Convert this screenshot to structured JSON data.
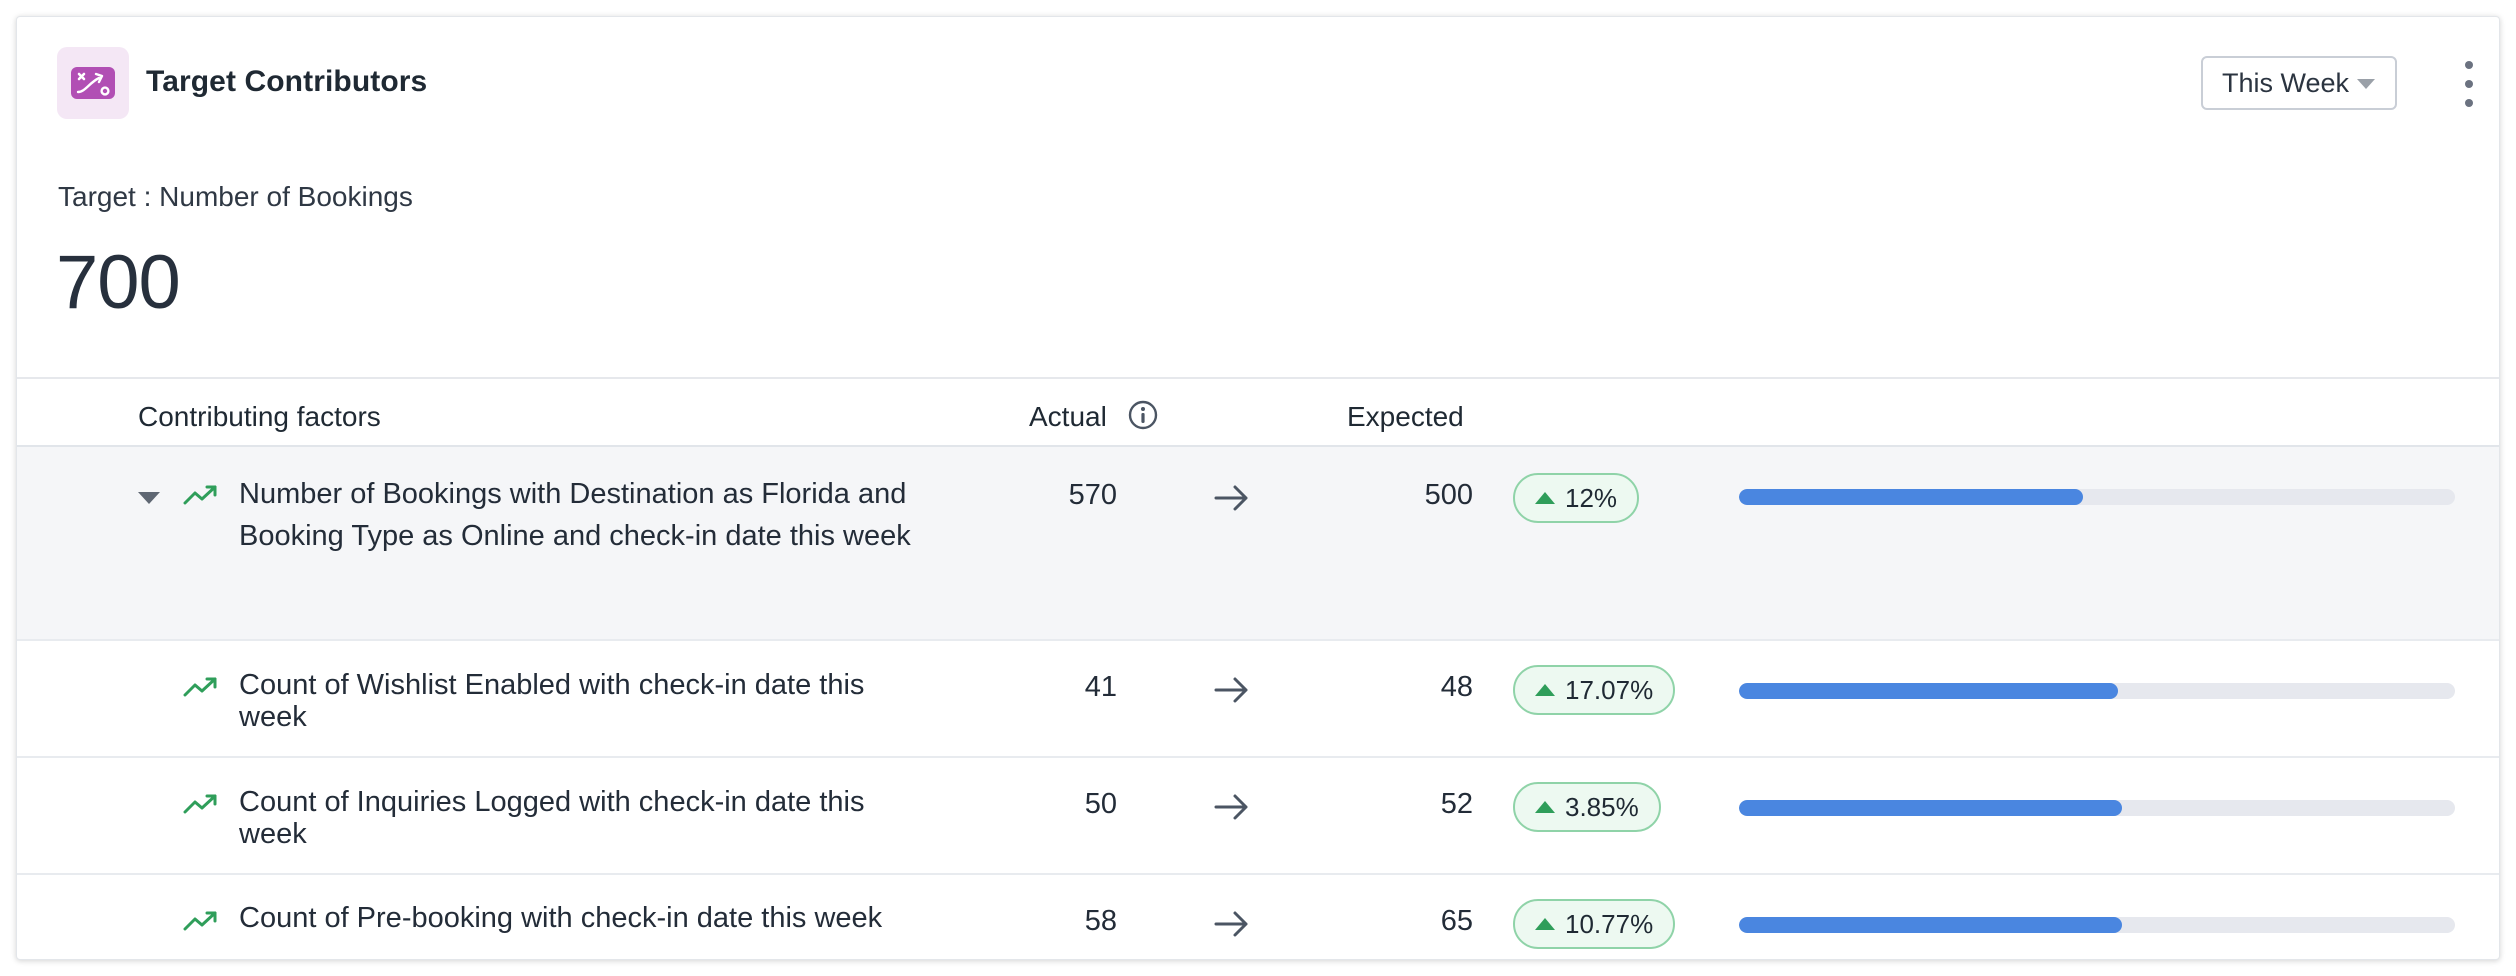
{
  "header": {
    "title": "Target Contributors",
    "icon": "target-strategy-icon",
    "period_select": {
      "value": "This Week"
    },
    "menu_icon": "more-vertical-icon"
  },
  "target": {
    "label": "Target : Number of Bookings",
    "value": "700"
  },
  "table": {
    "columns": {
      "factors": "Contributing factors",
      "actual": "Actual",
      "expected": "Expected"
    },
    "rows": [
      {
        "name": "Number of Bookings with Destination as Florida and Booking Type as Online and check-in date this week",
        "actual": "570",
        "expected": "500",
        "change": "12%",
        "progress": 0.48,
        "expanded": true,
        "level": "parent"
      },
      {
        "name": "Count of Wishlist Enabled with check-in date this week",
        "actual": "41",
        "expected": "48",
        "change": "17.07%",
        "progress": 0.53,
        "level": "child"
      },
      {
        "name": "Count of Inquiries Logged with check-in date this week",
        "actual": "50",
        "expected": "52",
        "change": "3.85%",
        "progress": 0.535,
        "level": "child"
      },
      {
        "name": "Count of Pre-booking with check-in date this week",
        "actual": "58",
        "expected": "65",
        "change": "10.77%",
        "progress": 0.535,
        "level": "child"
      }
    ]
  },
  "colors": {
    "accent_bar": "#4a86e0",
    "bar_track": "#e6e8ee",
    "trend_green": "#2f9e5a",
    "chip_border": "#8fd3a8",
    "icon_bg": "#f4e7f5",
    "icon_fg": "#b14fb4"
  }
}
